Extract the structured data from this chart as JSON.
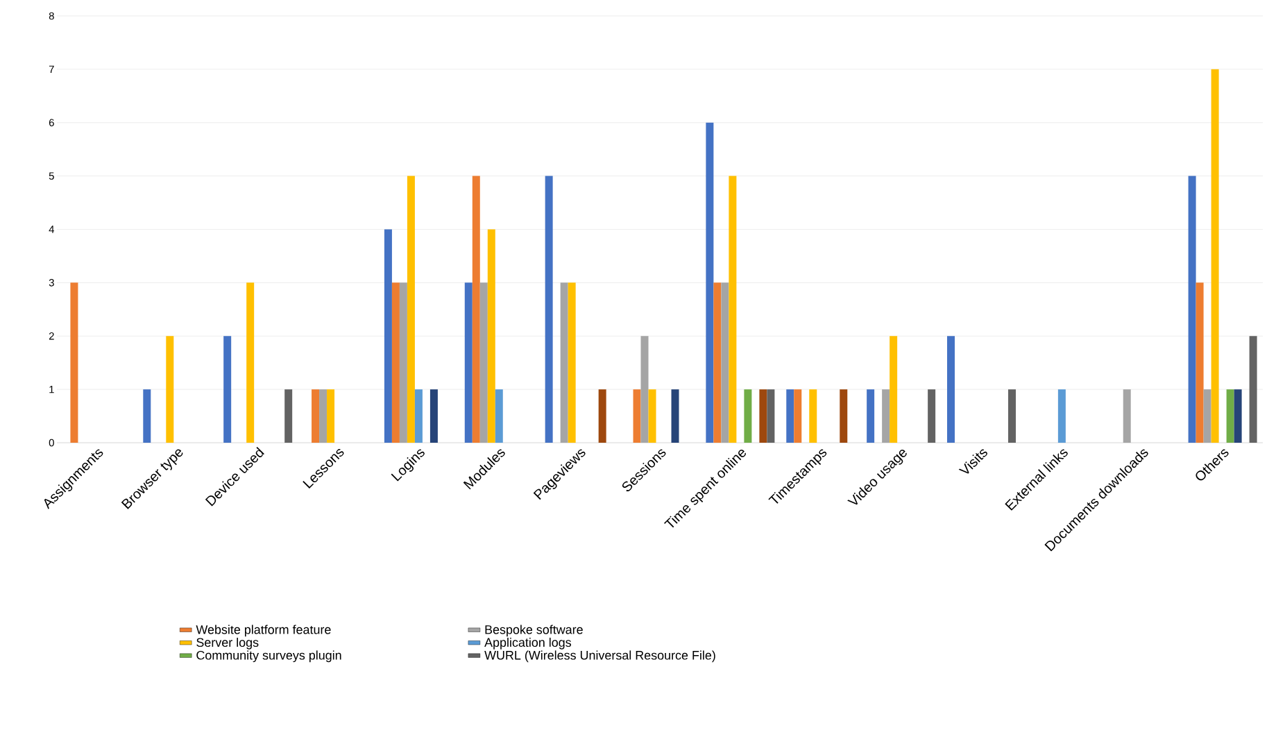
{
  "chart_data": {
    "type": "bar",
    "categories": [
      "Assignments",
      "Browser type",
      "Device used",
      "Lessons",
      "Logins",
      "Modules",
      "Pageviews",
      "Sessions",
      "Time spent online",
      "Timestamps",
      "Video usage",
      "Visits",
      "External links",
      "Documents downloads",
      "Others"
    ],
    "series": [
      {
        "color": "#4472c4",
        "values": [
          0,
          1,
          2,
          0,
          4,
          3,
          5,
          0,
          6,
          1,
          1,
          2,
          0,
          0,
          5
        ]
      },
      {
        "name": "Website platform feature",
        "color": "#ed7d31",
        "values": [
          3,
          0,
          0,
          1,
          3,
          5,
          0,
          1,
          3,
          1,
          0,
          0,
          0,
          0,
          3
        ]
      },
      {
        "name": "Bespoke software",
        "color": "#a5a5a5",
        "values": [
          0,
          0,
          0,
          1,
          3,
          3,
          3,
          2,
          3,
          0,
          1,
          0,
          0,
          1,
          1
        ]
      },
      {
        "name": "Server logs",
        "color": "#ffc000",
        "values": [
          0,
          2,
          3,
          1,
          5,
          4,
          3,
          1,
          5,
          1,
          2,
          0,
          0,
          0,
          7
        ]
      },
      {
        "name": "Application logs",
        "color": "#5b9bd5",
        "values": [
          0,
          0,
          0,
          0,
          1,
          1,
          0,
          0,
          0,
          0,
          0,
          0,
          1,
          0,
          0
        ]
      },
      {
        "name": "Community surveys plugin",
        "color": "#70ad47",
        "values": [
          0,
          0,
          0,
          0,
          0,
          0,
          0,
          0,
          1,
          0,
          0,
          0,
          0,
          0,
          1
        ]
      },
      {
        "color": "#264478",
        "values": [
          0,
          0,
          0,
          0,
          1,
          0,
          0,
          1,
          0,
          0,
          0,
          0,
          0,
          0,
          1
        ]
      },
      {
        "color": "#9e480e",
        "values": [
          0,
          0,
          0,
          0,
          0,
          0,
          1,
          0,
          1,
          1,
          0,
          0,
          0,
          0,
          0
        ]
      },
      {
        "name": "WURL (Wireless Universal Resource File)",
        "color": "#636363",
        "values": [
          0,
          0,
          1,
          0,
          0,
          0,
          0,
          0,
          1,
          0,
          1,
          1,
          0,
          0,
          2
        ]
      }
    ],
    "ylim": [
      0,
      8
    ],
    "yticks": [
      0,
      1,
      2,
      3,
      4,
      5,
      6,
      7,
      8
    ],
    "grid": "y",
    "legend": "bottom"
  }
}
